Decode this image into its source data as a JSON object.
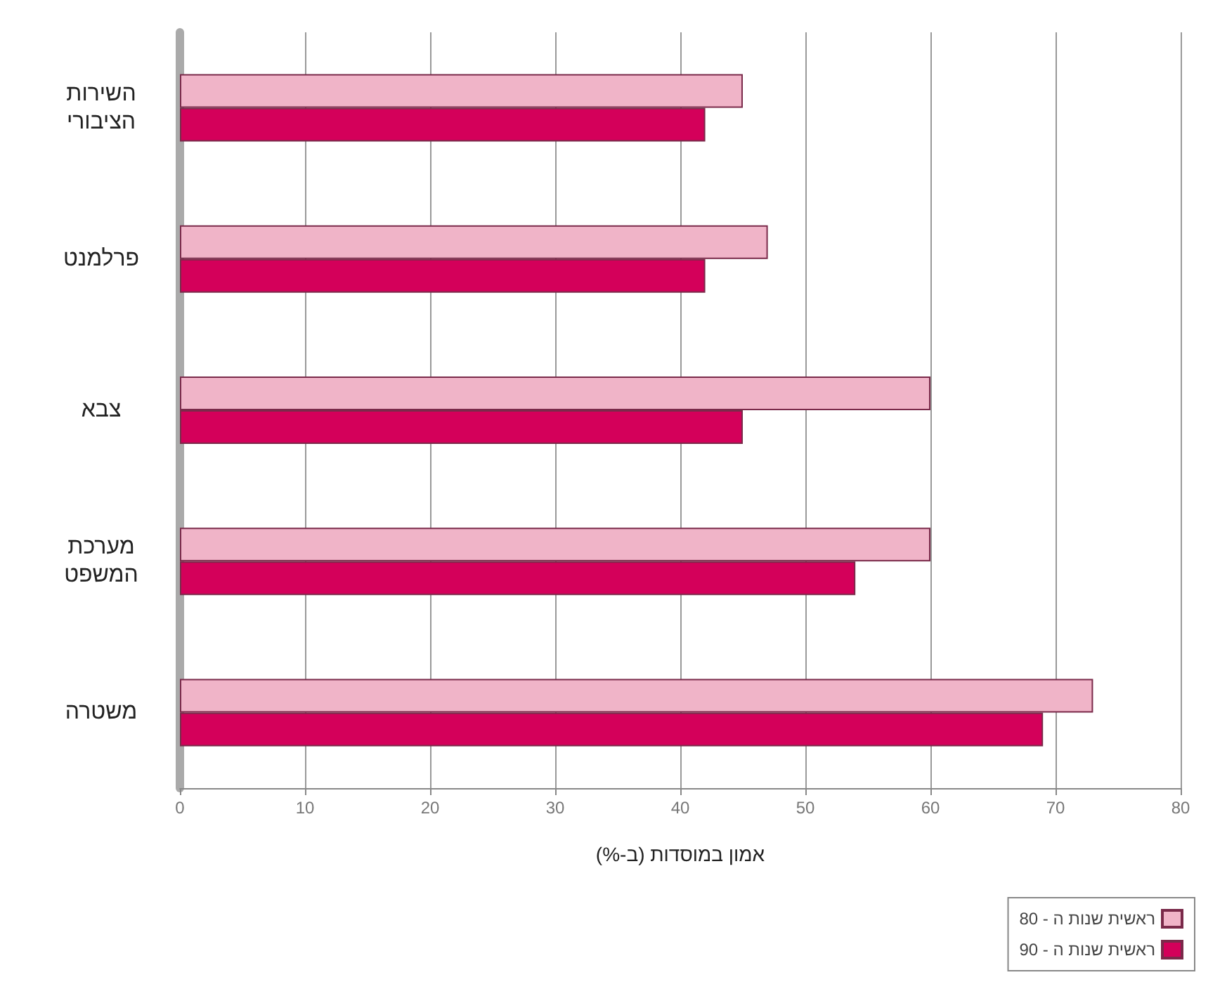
{
  "chart_data": {
    "type": "bar",
    "orientation": "horizontal",
    "xlabel": "אמון במוסדות (ב-%)",
    "categories": [
      "השירות הציבורי",
      "פרלמנט",
      "צבא",
      "מערכת המשפט",
      "משטרה"
    ],
    "series": [
      {
        "name": "ראשית שנות ה - 80",
        "color": "#f0b4c8",
        "values": [
          45,
          47,
          60,
          60,
          73
        ]
      },
      {
        "name": "ראשית שנות ה - 90",
        "color": "#d4005a",
        "values": [
          42,
          42,
          45,
          54,
          69
        ]
      }
    ],
    "xlim": [
      0,
      80
    ],
    "xticks": [
      0,
      10,
      20,
      30,
      40,
      50,
      60,
      70,
      80
    ],
    "grid": "x",
    "legend": "bottom right"
  }
}
